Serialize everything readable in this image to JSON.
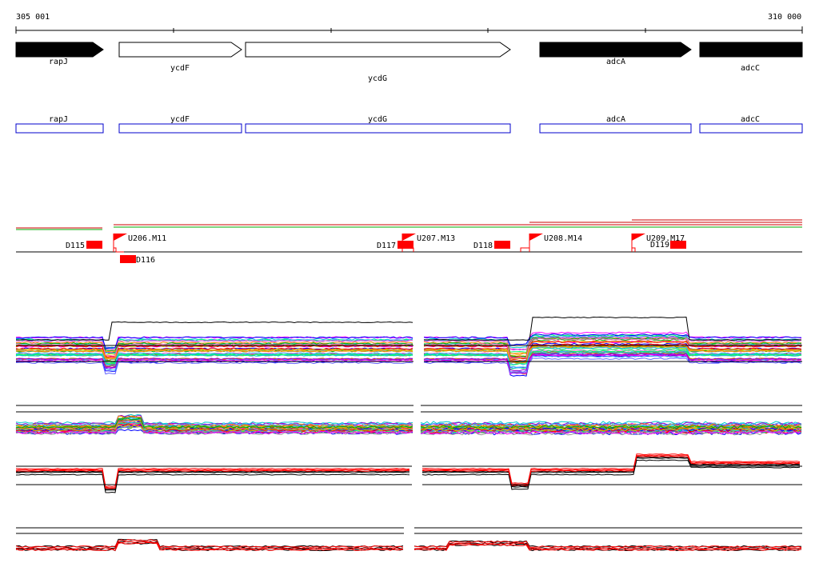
{
  "ruler": {
    "start_label": "305 001",
    "end_label": "310 000"
  },
  "genes": [
    {
      "name": "rapJ",
      "strand": "+",
      "fill": "black"
    },
    {
      "name": "ycdF",
      "strand": "+",
      "fill": "white"
    },
    {
      "name": "ycdG",
      "strand": "+",
      "fill": "white"
    },
    {
      "name": "adcA",
      "strand": "+",
      "fill": "black"
    },
    {
      "name": "adcC",
      "strand": "+",
      "fill": "black"
    }
  ],
  "transcripts": [
    "rapJ",
    "ycdF",
    "ycdG",
    "adcA",
    "adcC"
  ],
  "downstream_markers": [
    "D115",
    "D116",
    "D117",
    "D118",
    "D119"
  ],
  "upstream_markers": [
    "U206.M11",
    "U207.M13",
    "U208.M14",
    "U209.M17"
  ],
  "colors": {
    "gene_outline": "#0000cc",
    "marker": "#ff0000",
    "green_line": "#00aa00",
    "line_black": "#000000"
  }
}
